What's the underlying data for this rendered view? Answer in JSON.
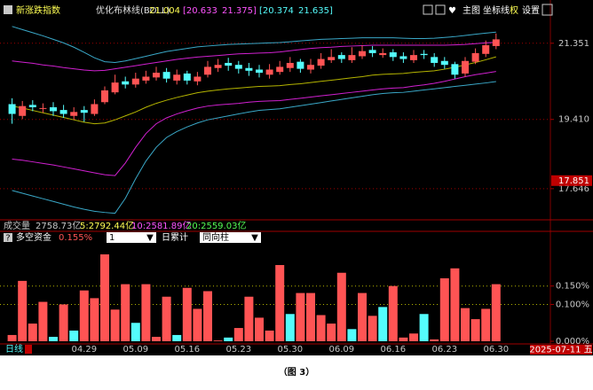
{
  "header": {
    "index_name": "新涨跌指数",
    "indicator": "优化布林线(BOLL)",
    "mid": "21.004",
    "band1_low": "[20.633",
    "band1_high": "21.375]",
    "band2_low": "[20.374",
    "band2_high": "21.635]",
    "buttons": [
      "主图",
      "坐标线",
      "权",
      "设置"
    ]
  },
  "volume_bar": {
    "label": "成交量",
    "value": "2758.73亿",
    "ma5": "5:2792.44亿",
    "ma10": "10:2581.89亿",
    "ma20": "20:2559.03亿"
  },
  "fund_bar": {
    "icon": "?",
    "label": "多空资金",
    "value": "0.155%",
    "select1": "1",
    "period": "日累计",
    "mode": "同向柱"
  },
  "chart_data": [
    {
      "type": "candlestick",
      "up_color": "#ff5454",
      "down_color": "#54fcfc",
      "open": [
        19.8,
        19.5,
        19.78,
        19.68,
        19.72,
        19.65,
        19.5,
        19.65,
        19.55,
        19.85,
        20.1,
        20.38,
        20.3,
        20.4,
        20.48,
        20.62,
        20.4,
        20.58,
        20.38,
        20.55,
        20.72,
        20.85,
        20.8,
        20.72,
        20.68,
        20.55,
        20.62,
        20.72,
        20.88,
        20.68,
        20.78,
        20.92,
        21.05,
        20.92,
        21.02,
        21.18,
        21.05,
        21.12,
        21.02,
        20.92,
        21.08,
        21.0,
        20.9,
        20.82,
        20.58,
        20.88,
        21.08,
        21.28
      ],
      "high": [
        19.95,
        19.88,
        19.9,
        19.82,
        19.85,
        19.78,
        19.72,
        19.75,
        19.92,
        20.25,
        20.55,
        20.5,
        20.6,
        20.65,
        20.75,
        20.72,
        20.68,
        20.65,
        20.62,
        20.9,
        20.95,
        20.98,
        20.9,
        20.85,
        20.8,
        20.82,
        20.9,
        21.0,
        20.95,
        20.95,
        21.1,
        21.2,
        21.12,
        21.25,
        21.3,
        21.28,
        21.22,
        21.2,
        21.12,
        21.18,
        21.18,
        21.1,
        21.0,
        20.88,
        21.0,
        21.22,
        21.42,
        21.6
      ],
      "low": [
        19.3,
        19.42,
        19.62,
        19.58,
        19.5,
        19.45,
        19.4,
        19.35,
        19.5,
        19.8,
        20.05,
        20.2,
        20.22,
        20.32,
        20.4,
        20.35,
        20.3,
        20.3,
        20.28,
        20.48,
        20.62,
        20.65,
        20.58,
        20.52,
        20.48,
        20.45,
        20.55,
        20.62,
        20.6,
        20.58,
        20.7,
        20.85,
        20.85,
        20.85,
        20.95,
        21.0,
        20.98,
        20.9,
        20.85,
        20.85,
        20.95,
        20.75,
        20.7,
        20.45,
        20.5,
        20.82,
        21.0,
        21.2
      ],
      "close": [
        19.55,
        19.75,
        19.72,
        19.7,
        19.62,
        19.55,
        19.6,
        19.58,
        19.8,
        20.15,
        20.35,
        20.3,
        20.45,
        20.5,
        20.6,
        20.45,
        20.55,
        20.4,
        20.5,
        20.75,
        20.8,
        20.78,
        20.7,
        20.65,
        20.6,
        20.68,
        20.75,
        20.85,
        20.7,
        20.8,
        20.95,
        21.0,
        20.95,
        21.05,
        21.15,
        21.1,
        21.1,
        21.0,
        20.95,
        21.05,
        21.05,
        20.85,
        20.8,
        20.55,
        20.9,
        21.1,
        21.3,
        21.45
      ],
      "lines": [
        {
          "color": "#b4b400",
          "values": [
            19.75,
            19.7,
            19.64,
            19.58,
            19.52,
            19.46,
            19.4,
            19.34,
            19.3,
            19.32,
            19.4,
            19.5,
            19.6,
            19.72,
            19.82,
            19.9,
            19.97,
            20.03,
            20.09,
            20.13,
            20.16,
            20.19,
            20.21,
            20.23,
            20.25,
            20.26,
            20.27,
            20.3,
            20.32,
            20.35,
            20.38,
            20.41,
            20.44,
            20.47,
            20.5,
            20.54,
            20.56,
            20.57,
            20.58,
            20.61,
            20.63,
            20.65,
            20.69,
            20.74,
            20.8,
            20.86,
            20.93,
            21.004
          ]
        },
        {
          "color": "#d020d0",
          "values": [
            20.9,
            20.87,
            20.84,
            20.8,
            20.77,
            20.73,
            20.7,
            20.67,
            20.65,
            20.66,
            20.7,
            20.74,
            20.78,
            20.82,
            20.86,
            20.9,
            20.94,
            20.97,
            21.0,
            21.02,
            21.04,
            21.06,
            21.08,
            21.09,
            21.1,
            21.11,
            21.13,
            21.16,
            21.19,
            21.22,
            21.24,
            21.25,
            21.27,
            21.28,
            21.29,
            21.3,
            21.3,
            21.3,
            21.3,
            21.3,
            21.3,
            21.3,
            21.3,
            21.31,
            21.32,
            21.34,
            21.36,
            21.375
          ]
        },
        {
          "color": "#d020d0",
          "values": [
            18.4,
            18.37,
            18.33,
            18.29,
            18.25,
            18.2,
            18.15,
            18.1,
            18.05,
            18.0,
            17.98,
            18.3,
            18.7,
            19.05,
            19.3,
            19.45,
            19.55,
            19.63,
            19.7,
            19.75,
            19.78,
            19.8,
            19.82,
            19.85,
            19.87,
            19.88,
            19.89,
            19.92,
            19.95,
            19.98,
            20.01,
            20.04,
            20.07,
            20.1,
            20.13,
            20.16,
            20.19,
            20.21,
            20.22,
            20.26,
            20.29,
            20.33,
            20.38,
            20.44,
            20.5,
            20.55,
            20.59,
            20.633
          ]
        },
        {
          "color": "#3aa8c8",
          "values": [
            21.78,
            21.7,
            21.62,
            21.54,
            21.45,
            21.36,
            21.25,
            21.12,
            20.98,
            20.88,
            20.86,
            20.9,
            20.96,
            21.02,
            21.08,
            21.14,
            21.18,
            21.22,
            21.26,
            21.28,
            21.3,
            21.32,
            21.33,
            21.34,
            21.35,
            21.36,
            21.37,
            21.39,
            21.41,
            21.43,
            21.45,
            21.46,
            21.47,
            21.48,
            21.49,
            21.49,
            21.49,
            21.49,
            21.48,
            21.47,
            21.47,
            21.48,
            21.5,
            21.52,
            21.55,
            21.58,
            21.61,
            21.635
          ]
        },
        {
          "color": "#3aa8c8",
          "values": [
            17.6,
            17.53,
            17.46,
            17.39,
            17.32,
            17.25,
            17.18,
            17.12,
            17.07,
            17.04,
            17.02,
            17.4,
            17.9,
            18.35,
            18.7,
            18.95,
            19.1,
            19.22,
            19.32,
            19.4,
            19.45,
            19.5,
            19.55,
            19.6,
            19.64,
            19.66,
            19.68,
            19.72,
            19.76,
            19.8,
            19.84,
            19.88,
            19.92,
            19.96,
            20.0,
            20.04,
            20.07,
            20.09,
            20.1,
            20.13,
            20.16,
            20.19,
            20.22,
            20.25,
            20.28,
            20.31,
            20.34,
            20.374
          ]
        }
      ],
      "ylim": [
        16.92,
        22.34
      ],
      "yticks": [
        21.351,
        {
          "value": 19.41,
          "label": "19.410"
        },
        17.646
      ],
      "marker_tick": 17.851,
      "grid": true
    },
    {
      "type": "bar",
      "categories": [
        null,
        null,
        null,
        null,
        null,
        null,
        null,
        "04.29",
        null,
        null,
        null,
        null,
        "05.09",
        null,
        null,
        null,
        null,
        "05.16",
        null,
        null,
        null,
        null,
        "05.23",
        null,
        null,
        null,
        null,
        "05.30",
        null,
        null,
        null,
        null,
        "06.09",
        null,
        null,
        null,
        null,
        "06.16",
        null,
        null,
        null,
        null,
        "06.23",
        null,
        null,
        null,
        null,
        "06.30"
      ],
      "values": [
        0.017,
        0.164,
        0.048,
        0.107,
        0.012,
        0.1,
        0.029,
        0.138,
        0.117,
        0.236,
        0.086,
        0.155,
        0.05,
        0.155,
        0.012,
        0.121,
        0.017,
        0.145,
        0.088,
        0.136,
        0.002,
        0.01,
        0.036,
        0.121,
        0.064,
        0.029,
        0.207,
        0.074,
        0.131,
        0.131,
        0.071,
        0.048,
        0.186,
        0.033,
        0.131,
        0.069,
        0.093,
        0.15,
        0.01,
        0.021,
        0.074,
        0.005,
        0.171,
        0.198,
        0.09,
        0.06,
        0.088,
        0.155
      ],
      "colors": [
        "#ff5454",
        "#ff5454",
        "#ff5454",
        "#ff5454",
        "#54fcfc",
        "#ff5454",
        "#54fcfc",
        "#ff5454",
        "#ff5454",
        "#ff5454",
        "#ff5454",
        "#ff5454",
        "#54fcfc",
        "#ff5454",
        "#ff5454",
        "#ff5454",
        "#54fcfc",
        "#ff5454",
        "#ff5454",
        "#ff5454",
        "#ff5454",
        "#54fcfc",
        "#ff5454",
        "#ff5454",
        "#ff5454",
        "#ff5454",
        "#ff5454",
        "#54fcfc",
        "#ff5454",
        "#ff5454",
        "#ff5454",
        "#ff5454",
        "#ff5454",
        "#54fcfc",
        "#ff5454",
        "#ff5454",
        "#54fcfc",
        "#ff5454",
        "#ff5454",
        "#ff5454",
        "#54fcfc",
        "#ff5454",
        "#ff5454",
        "#ff5454",
        "#ff5454",
        "#ff5454",
        "#ff5454",
        "#ff5454"
      ],
      "ylim": [
        0,
        0.26
      ],
      "yticks": [
        {
          "value": 0.15,
          "label": "0.150%"
        },
        {
          "value": 0.1,
          "label": "0.100%"
        },
        {
          "value": 0,
          "label": "0.000%"
        }
      ],
      "grid": true
    }
  ],
  "footer": {
    "period": "日线",
    "date": "2025-07-11 五"
  },
  "caption": "（图 3）"
}
